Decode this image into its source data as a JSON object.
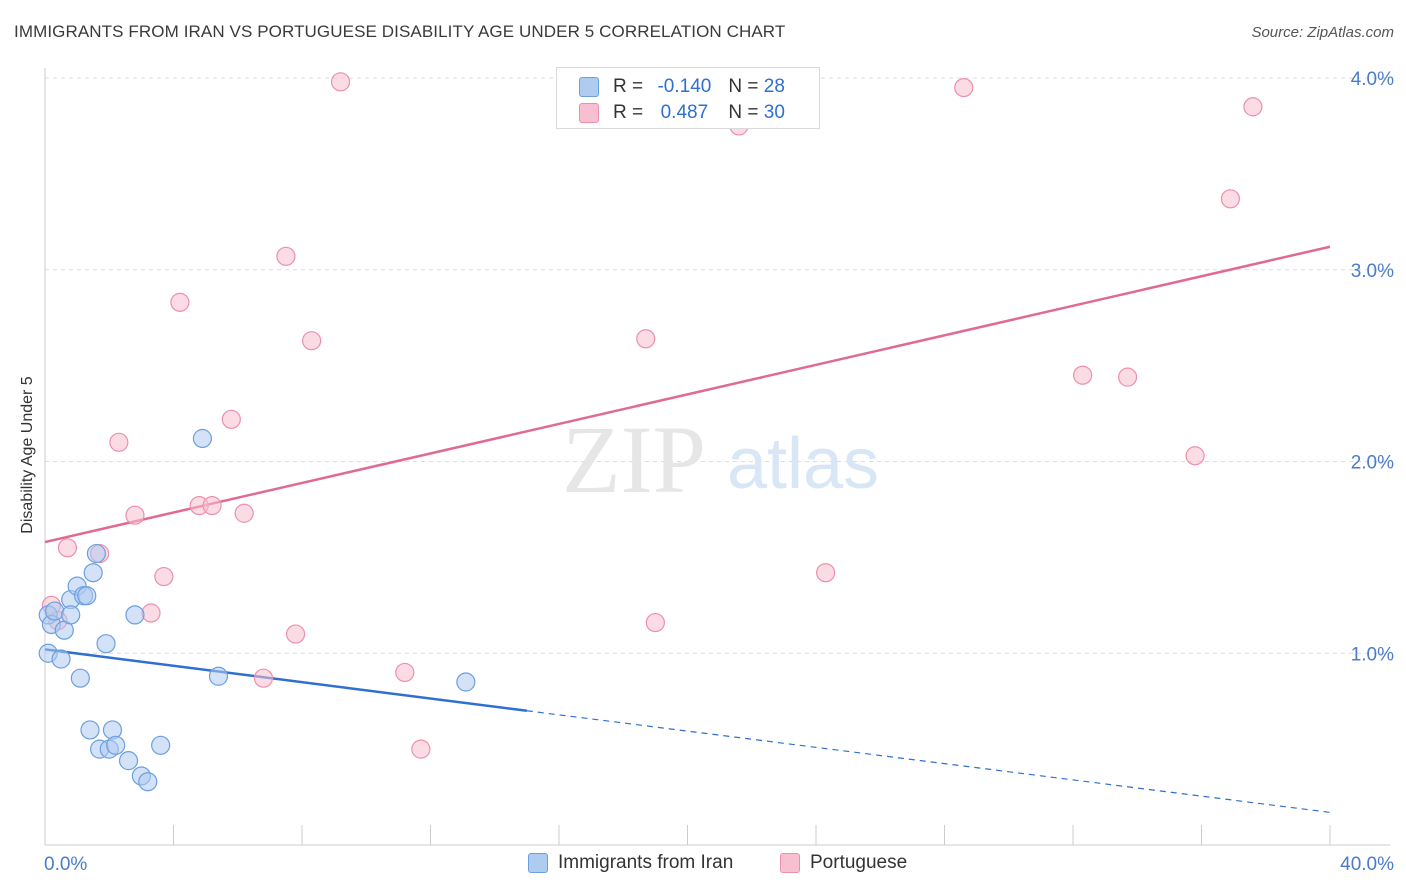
{
  "header": {
    "title": "IMMIGRANTS FROM IRAN VS PORTUGUESE DISABILITY AGE UNDER 5 CORRELATION CHART",
    "source": "Source: ZipAtlas.com"
  },
  "watermark": {
    "zip": "ZIP",
    "atlas": "atlas"
  },
  "legend": {
    "rows": [
      {
        "r_label": "R =",
        "r_value": "-0.140",
        "n_label": "N =",
        "n_value": "28"
      },
      {
        "r_label": "R =",
        "r_value": "0.487",
        "n_label": "N =",
        "n_value": "30"
      }
    ]
  },
  "colors": {
    "iran_fill": "#aecbf0",
    "iran_stroke": "#6b9fe0",
    "iran_line": "#2f6fcf",
    "portuguese_fill": "#f7bfd0",
    "portuguese_stroke": "#ec8fae",
    "portuguese_line": "#e06a93",
    "tick_label": "#4a7cc9",
    "grid": "#dcdcdc"
  },
  "chart_data": {
    "type": "scatter",
    "xlim": [
      0,
      40
    ],
    "ylim": [
      0,
      4.0
    ],
    "ylabel": "Disability Age Under 5",
    "xlabel": "",
    "x_tick_labels": [
      {
        "value": 0,
        "label": "0.0%"
      },
      {
        "value": 40,
        "label": "40.0%"
      }
    ],
    "y_tick_labels": [
      {
        "value": 1,
        "label": "1.0%"
      },
      {
        "value": 2,
        "label": "2.0%"
      },
      {
        "value": 3,
        "label": "3.0%"
      },
      {
        "value": 4,
        "label": "4.0%"
      }
    ],
    "grid": true,
    "legend_position": "top-center",
    "series": [
      {
        "name": "Immigrants from Iran",
        "points": [
          [
            0.1,
            1.2
          ],
          [
            0.1,
            1.0
          ],
          [
            0.2,
            1.15
          ],
          [
            0.3,
            1.22
          ],
          [
            0.5,
            0.97
          ],
          [
            0.6,
            1.12
          ],
          [
            0.8,
            1.28
          ],
          [
            0.8,
            1.2
          ],
          [
            1.0,
            1.35
          ],
          [
            1.1,
            0.87
          ],
          [
            1.2,
            1.3
          ],
          [
            1.3,
            1.3
          ],
          [
            1.4,
            0.6
          ],
          [
            1.5,
            1.42
          ],
          [
            1.6,
            1.52
          ],
          [
            1.7,
            0.5
          ],
          [
            1.9,
            1.05
          ],
          [
            2.0,
            0.5
          ],
          [
            2.1,
            0.6
          ],
          [
            2.2,
            0.52
          ],
          [
            2.6,
            0.44
          ],
          [
            2.8,
            1.2
          ],
          [
            3.0,
            0.36
          ],
          [
            3.2,
            0.33
          ],
          [
            3.6,
            0.52
          ],
          [
            4.9,
            2.12
          ],
          [
            5.4,
            0.88
          ],
          [
            13.1,
            0.85
          ]
        ],
        "trend": {
          "x": [
            0,
            15
          ],
          "y": [
            1.02,
            0.7
          ]
        },
        "trend_extension": {
          "x": [
            15,
            40
          ],
          "y": [
            0.7,
            0.17
          ]
        }
      },
      {
        "name": "Portuguese",
        "points": [
          [
            0.2,
            1.25
          ],
          [
            0.4,
            1.17
          ],
          [
            0.7,
            1.55
          ],
          [
            1.7,
            1.52
          ],
          [
            2.3,
            2.1
          ],
          [
            2.8,
            1.72
          ],
          [
            3.3,
            1.21
          ],
          [
            3.7,
            1.4
          ],
          [
            4.2,
            2.83
          ],
          [
            4.8,
            1.77
          ],
          [
            5.2,
            1.77
          ],
          [
            5.8,
            2.22
          ],
          [
            6.2,
            1.73
          ],
          [
            6.8,
            0.87
          ],
          [
            7.5,
            3.07
          ],
          [
            7.8,
            1.1
          ],
          [
            8.3,
            2.63
          ],
          [
            9.2,
            3.98
          ],
          [
            11.2,
            0.9
          ],
          [
            11.7,
            0.5
          ],
          [
            18.7,
            2.64
          ],
          [
            19.0,
            1.16
          ],
          [
            21.6,
            3.75
          ],
          [
            24.3,
            1.42
          ],
          [
            28.6,
            3.95
          ],
          [
            32.3,
            2.45
          ],
          [
            33.7,
            2.44
          ],
          [
            35.8,
            2.03
          ],
          [
            36.9,
            3.37
          ],
          [
            37.6,
            3.85
          ]
        ],
        "trend": {
          "x": [
            0,
            40
          ],
          "y": [
            1.58,
            3.12
          ]
        }
      }
    ]
  }
}
